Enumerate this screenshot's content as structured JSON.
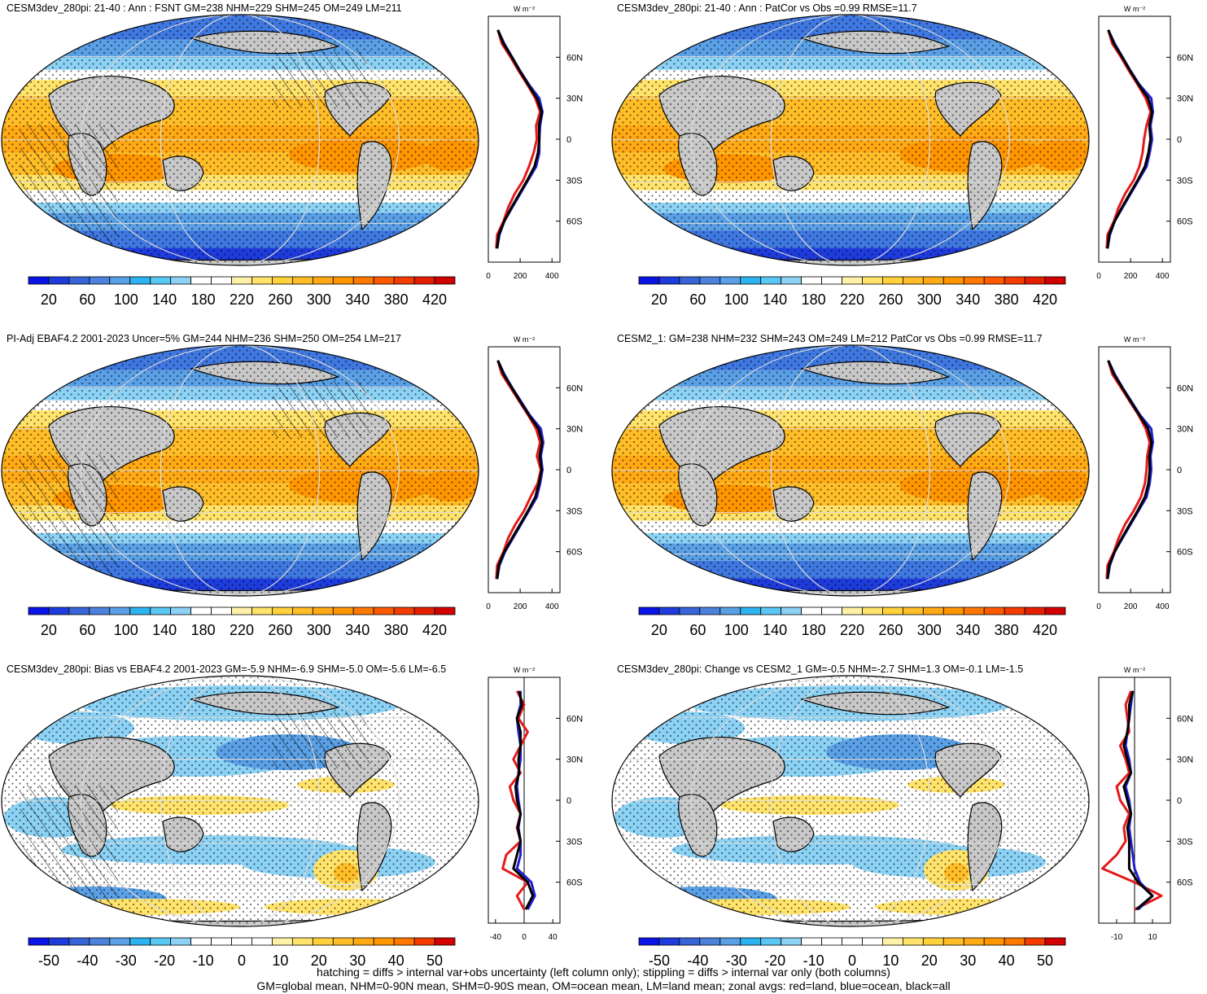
{
  "colors": {
    "land_gray": "#c8c8c8",
    "seq_colorbar": [
      "#0a14e6",
      "#1e3cdc",
      "#3764d7",
      "#4b82dc",
      "#5aa0e6",
      "#2db4f0",
      "#5ac8f5",
      "#8cd2f5",
      "#ffffff",
      "#ffffff",
      "#fff2a8",
      "#ffe36b",
      "#ffd23c",
      "#ffbe28",
      "#ffaa14",
      "#ff9600",
      "#ff7800",
      "#ff5a00",
      "#f53c00",
      "#e61e00",
      "#d20000"
    ],
    "div_colorbar": [
      "#0a14e6",
      "#1e3cdc",
      "#3764d7",
      "#4b82dc",
      "#5aa0e6",
      "#2db4f0",
      "#5ac8f5",
      "#8cd2f5",
      "#ffffff",
      "#ffffff",
      "#ffffff",
      "#ffffff",
      "#fff2a8",
      "#ffe36b",
      "#ffd23c",
      "#ffbe28",
      "#ffaa14",
      "#ff9600",
      "#ff7800",
      "#f53c00",
      "#d20000"
    ],
    "land_line": "#e41a1c",
    "ocean_line": "#1f1fd0",
    "all_line": "#000000"
  },
  "profile_unit": "W m⁻²",
  "panels": [
    {
      "title": "CESM3dev_280pi: 21-40 : Ann : FSNT GM=238 NHM=229 SHM=245 OM=249 LM=211",
      "map_kind": "seq",
      "colorbar_labels": [
        "20",
        "60",
        "100",
        "140",
        "180",
        "220",
        "260",
        "300",
        "340",
        "380",
        "420"
      ],
      "profile_xticks": [
        "0",
        "200",
        "400"
      ],
      "profile_yticks": [
        "60N",
        "30N",
        "0",
        "30S",
        "60S"
      ]
    },
    {
      "title": "CESM3dev_280pi: 21-40 : Ann : PatCor vs Obs =0.99 RMSE=11.7",
      "map_kind": "seq",
      "colorbar_labels": [
        "20",
        "60",
        "100",
        "140",
        "180",
        "220",
        "260",
        "300",
        "340",
        "380",
        "420"
      ],
      "profile_xticks": [
        "0",
        "200",
        "400"
      ],
      "profile_yticks": [
        "60N",
        "30N",
        "0",
        "30S",
        "60S"
      ]
    },
    {
      "title": "PI-Adj EBAF4.2 2001-2023 Uncer=5% GM=244 NHM=236 SHM=250 OM=254 LM=217",
      "map_kind": "seq",
      "colorbar_labels": [
        "20",
        "60",
        "100",
        "140",
        "180",
        "220",
        "260",
        "300",
        "340",
        "380",
        "420"
      ],
      "profile_xticks": [
        "0",
        "200",
        "400"
      ],
      "profile_yticks": [
        "60N",
        "30N",
        "0",
        "30S",
        "60S"
      ]
    },
    {
      "title": "CESM2_1: GM=238 NHM=232 SHM=243 OM=249 LM=212 PatCor vs Obs =0.99 RMSE=11.7",
      "map_kind": "seq",
      "colorbar_labels": [
        "20",
        "60",
        "100",
        "140",
        "180",
        "220",
        "260",
        "300",
        "340",
        "380",
        "420"
      ],
      "profile_xticks": [
        "0",
        "200",
        "400"
      ],
      "profile_yticks": [
        "60N",
        "30N",
        "0",
        "30S",
        "60S"
      ]
    },
    {
      "title": "CESM3dev_280pi: Bias vs EBAF4.2 2001-2023 GM=-5.9 NHM=-6.9 SHM=-5.0 OM=-5.6 LM=-6.5",
      "map_kind": "div",
      "colorbar_labels": [
        "-50",
        "-40",
        "-30",
        "-20",
        "-10",
        "0",
        "10",
        "20",
        "30",
        "40",
        "50"
      ],
      "profile_xticks": [
        "-40",
        "0",
        "40"
      ],
      "profile_yticks": [
        "60N",
        "30N",
        "0",
        "30S",
        "60S"
      ]
    },
    {
      "title": "CESM3dev_280pi: Change vs CESM2_1 GM=-0.5 NHM=-2.7 SHM=1.3 OM=-0.1 LM=-1.5",
      "map_kind": "div",
      "colorbar_labels": [
        "-50",
        "-40",
        "-30",
        "-20",
        "-10",
        "0",
        "10",
        "20",
        "30",
        "40",
        "50"
      ],
      "profile_xticks": [
        "-10",
        "10"
      ],
      "profile_yticks": [
        "60N",
        "30N",
        "0",
        "30S",
        "60S"
      ]
    }
  ],
  "chart_data": [
    {
      "type": "line",
      "title": "CESM3dev_280pi: 21-40 : Ann : FSNT GM=238 NHM=229 SHM=245 OM=249 LM=211",
      "xlabel": "W m⁻²",
      "xlim": [
        0,
        450
      ],
      "ylim": [
        -90,
        90
      ],
      "y_latitude": [
        80,
        70,
        60,
        50,
        40,
        30,
        20,
        10,
        0,
        -10,
        -20,
        -30,
        -40,
        -50,
        -60,
        -70,
        -80
      ],
      "series": [
        {
          "name": "land",
          "x": [
            60,
            85,
            140,
            190,
            245,
            295,
            325,
            300,
            305,
            285,
            255,
            220,
            165,
            125,
            95,
            55,
            50
          ]
        },
        {
          "name": "ocean",
          "x": [
            60,
            100,
            150,
            200,
            255,
            320,
            340,
            325,
            320,
            320,
            300,
            250,
            200,
            150,
            100,
            70,
            55
          ]
        },
        {
          "name": "all",
          "x": [
            60,
            95,
            148,
            198,
            250,
            305,
            335,
            318,
            320,
            312,
            290,
            245,
            195,
            145,
            100,
            65,
            55
          ]
        }
      ]
    },
    {
      "type": "line",
      "title": "CESM3dev_280pi: 21-40 : Ann : PatCor vs Obs =0.99 RMSE=11.7",
      "xlabel": "W m⁻²",
      "xlim": [
        0,
        450
      ],
      "ylim": [
        -90,
        90
      ],
      "y_latitude": [
        80,
        70,
        60,
        50,
        40,
        30,
        20,
        10,
        0,
        -10,
        -20,
        -30,
        -40,
        -50,
        -60,
        -70,
        -80
      ],
      "series": [
        {
          "name": "land",
          "x": [
            60,
            85,
            140,
            190,
            245,
            295,
            325,
            300,
            285,
            275,
            255,
            220,
            165,
            125,
            95,
            55,
            50
          ]
        },
        {
          "name": "ocean",
          "x": [
            60,
            100,
            150,
            200,
            255,
            330,
            340,
            325,
            335,
            320,
            300,
            250,
            200,
            150,
            100,
            70,
            55
          ]
        },
        {
          "name": "all",
          "x": [
            60,
            95,
            148,
            198,
            250,
            310,
            335,
            318,
            325,
            312,
            290,
            245,
            195,
            145,
            100,
            65,
            55
          ]
        }
      ]
    },
    {
      "type": "line",
      "title": "PI-Adj EBAF4.2 2001-2023 Uncer=5% GM=244 NHM=236 SHM=250 OM=254 LM=217",
      "xlabel": "W m⁻²",
      "xlim": [
        0,
        450
      ],
      "ylim": [
        -90,
        90
      ],
      "y_latitude": [
        80,
        70,
        60,
        50,
        40,
        30,
        20,
        10,
        0,
        -10,
        -20,
        -30,
        -40,
        -50,
        -60,
        -70,
        -80
      ],
      "series": [
        {
          "name": "land",
          "x": [
            60,
            85,
            140,
            195,
            250,
            300,
            325,
            305,
            330,
            310,
            265,
            225,
            170,
            125,
            95,
            55,
            50
          ]
        },
        {
          "name": "ocean",
          "x": [
            60,
            100,
            150,
            205,
            260,
            330,
            345,
            330,
            340,
            325,
            305,
            255,
            205,
            155,
            105,
            70,
            55
          ]
        },
        {
          "name": "all",
          "x": [
            60,
            95,
            148,
            200,
            255,
            315,
            338,
            322,
            335,
            318,
            295,
            250,
            200,
            150,
            100,
            65,
            55
          ]
        }
      ]
    },
    {
      "type": "line",
      "title": "CESM2_1: GM=238 NHM=232 SHM=243 OM=249 LM=212 PatCor vs Obs =0.99 RMSE=11.7",
      "xlabel": "W m⁻²",
      "xlim": [
        0,
        450
      ],
      "ylim": [
        -90,
        90
      ],
      "y_latitude": [
        80,
        70,
        60,
        50,
        40,
        30,
        20,
        10,
        0,
        -10,
        -20,
        -30,
        -40,
        -50,
        -60,
        -70,
        -80
      ],
      "series": [
        {
          "name": "land",
          "x": [
            60,
            85,
            140,
            195,
            250,
            295,
            320,
            305,
            300,
            290,
            265,
            220,
            165,
            125,
            95,
            55,
            50
          ]
        },
        {
          "name": "ocean",
          "x": [
            60,
            100,
            150,
            205,
            260,
            330,
            340,
            325,
            330,
            320,
            300,
            250,
            200,
            150,
            100,
            70,
            55
          ]
        },
        {
          "name": "all",
          "x": [
            60,
            95,
            148,
            200,
            255,
            310,
            332,
            318,
            320,
            312,
            290,
            245,
            195,
            145,
            100,
            65,
            55
          ]
        }
      ]
    },
    {
      "type": "line",
      "title": "CESM3dev_280pi: Bias vs EBAF4.2 2001-2023 GM=-5.9 NHM=-6.9 SHM=-5.0 OM=-5.6 LM=-6.5",
      "xlabel": "W m⁻²",
      "xlim": [
        -50,
        50
      ],
      "ylim": [
        -90,
        90
      ],
      "y_latitude": [
        80,
        70,
        60,
        50,
        40,
        30,
        20,
        10,
        0,
        -10,
        -20,
        -30,
        -40,
        -50,
        -60,
        -70,
        -80
      ],
      "series": [
        {
          "name": "land",
          "x": [
            -10,
            0,
            -8,
            5,
            -5,
            -15,
            -5,
            -20,
            -15,
            -5,
            -10,
            -5,
            -25,
            -30,
            5,
            -10,
            0
          ]
        },
        {
          "name": "ocean",
          "x": [
            -5,
            -5,
            -10,
            -8,
            -5,
            -5,
            -8,
            -10,
            -8,
            -5,
            -8,
            -5,
            -5,
            -10,
            10,
            15,
            5
          ]
        },
        {
          "name": "all",
          "x": [
            -7,
            -3,
            -10,
            -5,
            -5,
            -8,
            -7,
            -12,
            -10,
            -5,
            -9,
            -5,
            -10,
            -15,
            5,
            12,
            2
          ]
        }
      ]
    },
    {
      "type": "line",
      "title": "CESM3dev_280pi: Change vs CESM2_1 GM=-0.5 NHM=-2.7 SHM=1.3 OM=-0.1 LM=-1.5",
      "xlabel": "W m⁻²",
      "xlim": [
        -20,
        20
      ],
      "ylim": [
        -90,
        90
      ],
      "y_latitude": [
        80,
        70,
        60,
        50,
        40,
        30,
        20,
        10,
        0,
        -10,
        -20,
        -30,
        -40,
        -50,
        -60,
        -70,
        -80
      ],
      "series": [
        {
          "name": "land",
          "x": [
            -2,
            -5,
            -4,
            -3,
            -8,
            -5,
            -3,
            -10,
            -8,
            -3,
            -6,
            -5,
            -10,
            -18,
            0,
            15,
            0
          ]
        },
        {
          "name": "ocean",
          "x": [
            -1,
            -2,
            -3,
            -4,
            -5,
            -3,
            -2,
            -5,
            -3,
            -2,
            -3,
            -2,
            -1,
            0,
            3,
            10,
            2
          ]
        },
        {
          "name": "all",
          "x": [
            -1,
            -3,
            -3,
            -4,
            -6,
            -4,
            -2,
            -6,
            -4,
            -2,
            -4,
            -3,
            -3,
            -3,
            2,
            10,
            1
          ]
        }
      ]
    }
  ],
  "footer": {
    "line1": "hatching = diffs > internal var+obs uncertainty (left column only); stippling = diffs > internal var only (both columns)",
    "line2": "GM=global mean, NHM=0-90N mean, SHM=0-90S mean, OM=ocean mean, LM=land mean; zonal avgs: red=land, blue=ocean, black=all"
  }
}
